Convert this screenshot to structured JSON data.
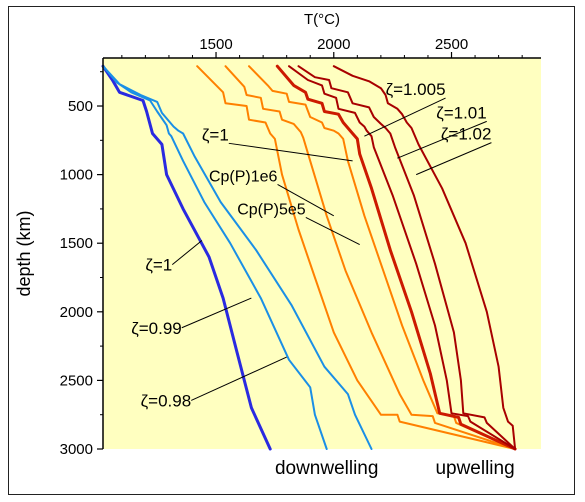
{
  "chart_data": {
    "type": "line",
    "title": "",
    "xlabel": "T(°C)",
    "ylabel": "depth (km)",
    "x_axis_position": "top",
    "y_axis_inverted": true,
    "xlim": [
      1020,
      2880
    ],
    "ylim": [
      3000,
      150
    ],
    "xticks": [
      1500,
      2000,
      2500
    ],
    "yticks": [
      500,
      1000,
      1500,
      2000,
      2500,
      3000
    ],
    "grid": false,
    "background_color": "#ffffc0",
    "colors": {
      "blue_thick": "#2a2ae0",
      "blue_light": "#1a8fe6",
      "orange": "#ff8000",
      "red_mid": "#cc1a00",
      "red_dark": "#a80000"
    },
    "series": [
      {
        "color_key": "blue_thick",
        "width": 3,
        "points": [
          [
            1020,
            210
          ],
          [
            1060,
            310
          ],
          [
            1090,
            400
          ],
          [
            1190,
            460
          ],
          [
            1205,
            540
          ],
          [
            1230,
            700
          ],
          [
            1270,
            780
          ],
          [
            1290,
            1000
          ],
          [
            1360,
            1250
          ],
          [
            1470,
            1600
          ],
          [
            1530,
            1900
          ],
          [
            1590,
            2300
          ],
          [
            1650,
            2700
          ],
          [
            1730,
            3000
          ]
        ]
      },
      {
        "color_key": "blue_light",
        "width": 2,
        "points": [
          [
            1020,
            210
          ],
          [
            1080,
            330
          ],
          [
            1140,
            400
          ],
          [
            1220,
            460
          ],
          [
            1250,
            540
          ],
          [
            1290,
            640
          ],
          [
            1300,
            700
          ],
          [
            1310,
            720
          ],
          [
            1360,
            900
          ],
          [
            1450,
            1200
          ],
          [
            1560,
            1500
          ],
          [
            1690,
            1900
          ],
          [
            1810,
            2350
          ],
          [
            1900,
            2550
          ],
          [
            1920,
            2750
          ],
          [
            1970,
            3000
          ]
        ]
      },
      {
        "color_key": "blue_light",
        "width": 2,
        "points": [
          [
            1020,
            210
          ],
          [
            1090,
            340
          ],
          [
            1180,
            420
          ],
          [
            1250,
            470
          ],
          [
            1270,
            550
          ],
          [
            1320,
            650
          ],
          [
            1340,
            680
          ],
          [
            1360,
            700
          ],
          [
            1410,
            870
          ],
          [
            1520,
            1200
          ],
          [
            1670,
            1550
          ],
          [
            1820,
            1950
          ],
          [
            1960,
            2400
          ],
          [
            2060,
            2600
          ],
          [
            2090,
            2750
          ],
          [
            2160,
            3000
          ]
        ]
      },
      {
        "color_key": "orange",
        "width": 2,
        "points": [
          [
            1420,
            210
          ],
          [
            1530,
            400
          ],
          [
            1540,
            480
          ],
          [
            1630,
            500
          ],
          [
            1640,
            600
          ],
          [
            1710,
            620
          ],
          [
            1730,
            700
          ],
          [
            1750,
            740
          ],
          [
            1780,
            1000
          ],
          [
            1850,
            1400
          ],
          [
            1920,
            1750
          ],
          [
            2000,
            2150
          ],
          [
            2100,
            2500
          ],
          [
            2200,
            2750
          ],
          [
            2270,
            2750
          ],
          [
            2280,
            2800
          ],
          [
            2770,
            3000
          ]
        ]
      },
      {
        "color_key": "orange",
        "width": 2,
        "points": [
          [
            1540,
            210
          ],
          [
            1620,
            360
          ],
          [
            1630,
            420
          ],
          [
            1690,
            440
          ],
          [
            1700,
            520
          ],
          [
            1770,
            540
          ],
          [
            1780,
            600
          ],
          [
            1830,
            630
          ],
          [
            1860,
            690
          ],
          [
            1870,
            730
          ],
          [
            1900,
            900
          ],
          [
            1970,
            1300
          ],
          [
            2050,
            1700
          ],
          [
            2160,
            2150
          ],
          [
            2280,
            2600
          ],
          [
            2330,
            2750
          ],
          [
            2420,
            2760
          ],
          [
            2430,
            2810
          ],
          [
            2770,
            3000
          ]
        ]
      },
      {
        "color_key": "orange",
        "width": 2,
        "points": [
          [
            1640,
            210
          ],
          [
            1720,
            350
          ],
          [
            1740,
            390
          ],
          [
            1800,
            410
          ],
          [
            1810,
            470
          ],
          [
            1880,
            490
          ],
          [
            1900,
            580
          ],
          [
            1950,
            620
          ],
          [
            1960,
            660
          ],
          [
            2000,
            680
          ],
          [
            2020,
            700
          ],
          [
            2040,
            740
          ],
          [
            2060,
            900
          ],
          [
            2130,
            1300
          ],
          [
            2200,
            1650
          ],
          [
            2290,
            2100
          ],
          [
            2380,
            2500
          ],
          [
            2440,
            2740
          ],
          [
            2510,
            2760
          ],
          [
            2520,
            2810
          ],
          [
            2770,
            3000
          ]
        ]
      },
      {
        "color_key": "red_mid",
        "width": 3,
        "points": [
          [
            1760,
            210
          ],
          [
            1830,
            350
          ],
          [
            1880,
            400
          ],
          [
            1890,
            450
          ],
          [
            1950,
            480
          ],
          [
            1960,
            540
          ],
          [
            2020,
            560
          ],
          [
            2040,
            620
          ],
          [
            2060,
            660
          ],
          [
            2080,
            700
          ],
          [
            2100,
            740
          ],
          [
            2110,
            850
          ],
          [
            2160,
            1100
          ],
          [
            2240,
            1550
          ],
          [
            2330,
            2000
          ],
          [
            2410,
            2450
          ],
          [
            2450,
            2740
          ],
          [
            2530,
            2770
          ],
          [
            2540,
            2820
          ],
          [
            2770,
            3000
          ]
        ]
      },
      {
        "color_key": "red_dark",
        "width": 2,
        "points": [
          [
            1810,
            210
          ],
          [
            1890,
            310
          ],
          [
            1950,
            350
          ],
          [
            1960,
            410
          ],
          [
            2010,
            440
          ],
          [
            2020,
            520
          ],
          [
            2090,
            550
          ],
          [
            2110,
            620
          ],
          [
            2130,
            650
          ],
          [
            2140,
            680
          ],
          [
            2160,
            720
          ],
          [
            2170,
            800
          ],
          [
            2250,
            1150
          ],
          [
            2350,
            1650
          ],
          [
            2430,
            2100
          ],
          [
            2480,
            2500
          ],
          [
            2500,
            2740
          ],
          [
            2570,
            2760
          ],
          [
            2580,
            2800
          ],
          [
            2770,
            3000
          ]
        ]
      },
      {
        "color_key": "red_dark",
        "width": 2,
        "points": [
          [
            1850,
            210
          ],
          [
            1920,
            290
          ],
          [
            1980,
            310
          ],
          [
            1990,
            370
          ],
          [
            2060,
            400
          ],
          [
            2080,
            480
          ],
          [
            2150,
            510
          ],
          [
            2170,
            580
          ],
          [
            2200,
            630
          ],
          [
            2220,
            660
          ],
          [
            2240,
            700
          ],
          [
            2260,
            800
          ],
          [
            2340,
            1150
          ],
          [
            2430,
            1650
          ],
          [
            2510,
            2150
          ],
          [
            2540,
            2500
          ],
          [
            2550,
            2740
          ],
          [
            2640,
            2770
          ],
          [
            2650,
            2810
          ],
          [
            2770,
            3000
          ]
        ]
      },
      {
        "color_key": "red_dark",
        "width": 2,
        "points": [
          [
            2000,
            210
          ],
          [
            2080,
            280
          ],
          [
            2150,
            320
          ],
          [
            2200,
            370
          ],
          [
            2220,
            420
          ],
          [
            2230,
            480
          ],
          [
            2270,
            520
          ],
          [
            2290,
            560
          ],
          [
            2310,
            620
          ],
          [
            2330,
            660
          ],
          [
            2360,
            780
          ],
          [
            2460,
            1100
          ],
          [
            2560,
            1500
          ],
          [
            2650,
            2000
          ],
          [
            2700,
            2400
          ],
          [
            2720,
            2700
          ],
          [
            2740,
            2800
          ],
          [
            2760,
            2830
          ],
          [
            2770,
            3000
          ]
        ]
      }
    ],
    "annotations": [
      {
        "text": "ζ=1.005",
        "x": 2220,
        "y": 420,
        "line_to": [
          2130,
          720
        ]
      },
      {
        "text": "ζ=1.01",
        "x": 2435,
        "y": 590,
        "line_to": [
          2270,
          880
        ]
      },
      {
        "text": "ζ=1.02",
        "x": 2455,
        "y": 745,
        "line_to": [
          2350,
          1000
        ]
      },
      {
        "text": "ζ=1",
        "x": 1440,
        "y": 750,
        "line_to": [
          2080,
          900
        ]
      },
      {
        "text": "Cp(P)1e6",
        "x": 1470,
        "y": 1050,
        "line_to": [
          2000,
          1300
        ]
      },
      {
        "text": "Cp(P)5e5",
        "x": 1590,
        "y": 1290,
        "line_to": [
          2110,
          1510
        ]
      },
      {
        "text": "ζ=1",
        "x": 1200,
        "y": 1700,
        "line_to": [
          1440,
          1480
        ]
      },
      {
        "text": "ζ=0.99",
        "x": 1140,
        "y": 2160,
        "line_to": [
          1650,
          1900
        ]
      },
      {
        "text": "ζ=0.98",
        "x": 1180,
        "y": 2690,
        "line_to": [
          1800,
          2330
        ]
      }
    ],
    "bottom_labels": [
      {
        "text": "downwelling",
        "x": 1970
      },
      {
        "text": "upwelling",
        "x": 2600
      }
    ]
  }
}
